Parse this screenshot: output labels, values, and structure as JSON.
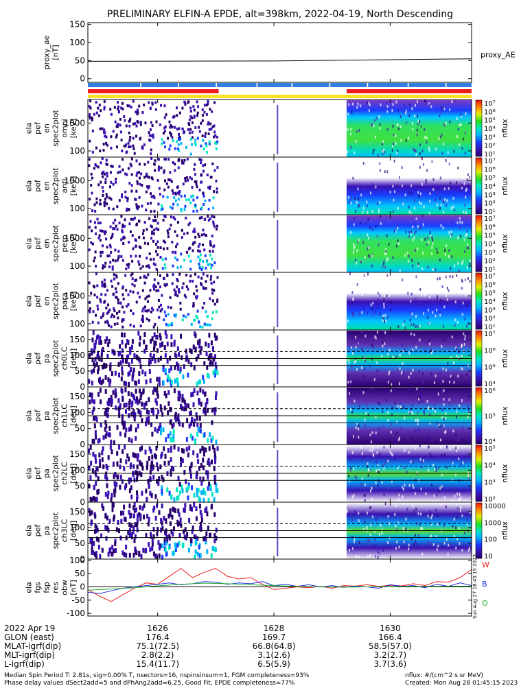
{
  "title": "PRELIMINARY ELFIN-A EPDE, alt=398km, 2022-04-19, North Descending",
  "time_range": [
    1624.8,
    1631.4
  ],
  "bottom_axis": {
    "ticks": [
      1626,
      1628,
      1630
    ],
    "ticks_label": [
      "1626",
      "1628",
      "1630"
    ],
    "rows": [
      {
        "name": "2022 Apr 19",
        "values": [
          "1626",
          "1628",
          "1630"
        ]
      },
      {
        "name": "GLON (east)",
        "values": [
          "176.4",
          "169.7",
          "166.4"
        ]
      },
      {
        "name": "MLAT-igrf(dip)",
        "values": [
          "75.1(72.5)",
          "66.8(64.8)",
          "58.5(57.0)"
        ]
      },
      {
        "name": "MLT-igrf(dip)",
        "values": [
          "2.8(2.2)",
          "3.1(2.6)",
          "3.2(2.7)"
        ]
      },
      {
        "name": "L-igrf(dip)",
        "values": [
          "15.4(11.7)",
          "6.5(5.9)",
          "3.7(3.6)"
        ]
      }
    ]
  },
  "footer": {
    "left_line1": "Median Spin Period T: 2.81s, sig=0.00% T, nsectors=16, nspinsinsum=1, FGM completeness=93%",
    "left_line2": "Phase delay values dSect2add=5 and dPhAng2add=6.25, Good Fit, EPDE completeness=77%",
    "right_line1": "nflux: #/(cm^2 s sr MeV)",
    "right_line2": "Created: Mon Aug 28 01:45:15 2023",
    "side_stamp": "Sun Aug 27 18:45:15 2023"
  },
  "colors": {
    "bar_blue": "#2f7fe0",
    "bar_red": "#ee1c1c",
    "bar_yellow": "#f7df2a",
    "line_W": "#ee1c1c",
    "line_B": "#1e2ee0",
    "line_O": "#20b030"
  },
  "status_bars": {
    "blue_segments": [
      [
        1624.8,
        1625.7
      ],
      [
        1625.72,
        1626.35
      ],
      [
        1626.37,
        1627.0
      ],
      [
        1627.02,
        1627.7
      ],
      [
        1627.72,
        1628.3
      ],
      [
        1628.32,
        1628.95
      ],
      [
        1628.97,
        1629.6
      ],
      [
        1629.62,
        1630.3
      ],
      [
        1630.32,
        1630.95
      ],
      [
        1630.97,
        1631.4
      ]
    ],
    "red_segments": [
      [
        1624.8,
        1627.05
      ],
      [
        1629.25,
        1631.4
      ]
    ],
    "yellow_segments": [
      [
        1624.8,
        1631.4
      ]
    ]
  },
  "chart_data": [
    {
      "type": "line",
      "id": "proxy_ae",
      "ylabel": "proxy_ae [nT]",
      "ylim": [
        -10,
        155
      ],
      "yticks": [
        "0",
        "50",
        "100",
        "150"
      ],
      "series": [
        {
          "name": "proxy_AE",
          "x": [
            1624.8,
            1628.0,
            1631.4
          ],
          "y": [
            48,
            49,
            55
          ]
        }
      ]
    },
    {
      "type": "heatmap",
      "id": "ela_pef_en_spec2plot_omni",
      "ylabel": [
        "ela",
        "pef",
        "en",
        "spec2plot",
        "omni",
        "[keV]"
      ],
      "ylim": [
        60,
        7000
      ],
      "yscale": "log",
      "yticks": [
        "100",
        "1000"
      ],
      "colorbar": {
        "label": "nflux",
        "range": [
          10,
          10000000
        ],
        "ticks": [
          "10⁷",
          "10⁶",
          "10⁵",
          "10⁴",
          "10³",
          "10²",
          "10¹"
        ]
      },
      "segments": [
        {
          "x": [
            1624.8,
            1627.05
          ],
          "level": "sparse"
        },
        {
          "x": [
            1629.25,
            1631.4
          ],
          "level": "dense"
        }
      ]
    },
    {
      "type": "heatmap",
      "id": "ela_pef_en_spec2plot_anti",
      "ylabel": [
        "ela",
        "pef",
        "en",
        "spec2plot",
        "anti",
        "[keV]"
      ],
      "ylim": [
        60,
        7000
      ],
      "yscale": "log",
      "yticks": [
        "100",
        "1000"
      ],
      "colorbar": {
        "label": "nflux",
        "range": [
          10,
          10000000
        ],
        "ticks": [
          "10⁷",
          "10⁶",
          "10⁵",
          "10⁴",
          "10³",
          "10²",
          "10¹"
        ]
      },
      "segments": [
        {
          "x": [
            1624.8,
            1627.05
          ],
          "level": "sparse"
        },
        {
          "x": [
            1629.25,
            1631.4
          ],
          "level": "medium"
        }
      ]
    },
    {
      "type": "heatmap",
      "id": "ela_pef_en_spec2plot_perp",
      "ylabel": [
        "ela",
        "pef",
        "en",
        "spec2plot",
        "perp",
        "[keV]"
      ],
      "ylim": [
        60,
        7000
      ],
      "yscale": "log",
      "yticks": [
        "100",
        "1000"
      ],
      "colorbar": {
        "label": "nflux",
        "range": [
          10,
          10000000
        ],
        "ticks": [
          "10⁷",
          "10⁶",
          "10⁵",
          "10⁴",
          "10³",
          "10²",
          "10¹"
        ]
      },
      "segments": [
        {
          "x": [
            1624.8,
            1627.05
          ],
          "level": "sparse"
        },
        {
          "x": [
            1629.25,
            1631.4
          ],
          "level": "dense"
        }
      ]
    },
    {
      "type": "heatmap",
      "id": "ela_pef_en_spec2plot_para",
      "ylabel": [
        "ela",
        "pef",
        "en",
        "spec2plot",
        "para",
        "[keV]"
      ],
      "ylim": [
        60,
        7000
      ],
      "yscale": "log",
      "yticks": [
        "100",
        "1000"
      ],
      "colorbar": {
        "label": "nflux",
        "range": [
          10,
          10000000
        ],
        "ticks": [
          "10⁷",
          "10⁶",
          "10⁵",
          "10⁴",
          "10³",
          "10²",
          "10¹"
        ]
      },
      "segments": [
        {
          "x": [
            1624.8,
            1627.05
          ],
          "level": "sparse"
        },
        {
          "x": [
            1629.25,
            1631.4
          ],
          "level": "medium"
        }
      ]
    },
    {
      "type": "heatmap",
      "id": "ela_pef_pa_spec2plot_ch0LC",
      "ylabel": [
        "ela",
        "pef",
        "pa",
        "spec2plot",
        "ch0LC",
        "[deg]"
      ],
      "ylim": [
        0,
        180
      ],
      "yticks": [
        "0",
        "50",
        "100",
        "150"
      ],
      "reference_lines": {
        "dashed": [
          112
        ],
        "solid": [
          90,
          68
        ]
      },
      "colorbar": {
        "label": "nflux",
        "range": [
          3000,
          10000000
        ],
        "ticks": [
          "10⁷",
          "10⁶",
          "10⁵",
          "10⁴"
        ]
      },
      "segments": [
        {
          "x": [
            1624.8,
            1627.05
          ],
          "level": "sparse"
        },
        {
          "x": [
            1629.25,
            1631.4
          ],
          "level": "dense"
        }
      ]
    },
    {
      "type": "heatmap",
      "id": "ela_pef_pa_spec2plot_ch1LC",
      "ylabel": [
        "ela",
        "pef",
        "pa",
        "spec2plot",
        "ch1LC",
        "[deg]"
      ],
      "ylim": [
        0,
        180
      ],
      "yticks": [
        "0",
        "50",
        "100",
        "150"
      ],
      "reference_lines": {
        "dashed": [
          112
        ],
        "solid": [
          90,
          68
        ]
      },
      "colorbar": {
        "label": "nflux",
        "range": [
          3000,
          3000000
        ],
        "ticks": [
          "10⁶",
          "10⁵",
          "10⁴"
        ]
      },
      "segments": [
        {
          "x": [
            1624.8,
            1627.05
          ],
          "level": "sparse"
        },
        {
          "x": [
            1629.25,
            1631.4
          ],
          "level": "dense"
        }
      ]
    },
    {
      "type": "heatmap",
      "id": "ela_pef_pa_spec2plot_ch2LC",
      "ylabel": [
        "ela",
        "pef",
        "pa",
        "spec2plot",
        "ch2LC",
        "[deg]"
      ],
      "ylim": [
        0,
        180
      ],
      "yticks": [
        "0",
        "50",
        "100",
        "150"
      ],
      "reference_lines": {
        "dashed": [
          112
        ],
        "solid": [
          90,
          68
        ]
      },
      "colorbar": {
        "label": "nflux",
        "range": [
          100,
          1000000
        ],
        "ticks": [
          "10⁵",
          "10⁴",
          "10³",
          "10²"
        ]
      },
      "segments": [
        {
          "x": [
            1624.8,
            1627.05
          ],
          "level": "sparse"
        },
        {
          "x": [
            1629.25,
            1631.4
          ],
          "level": "medium"
        }
      ]
    },
    {
      "type": "heatmap",
      "id": "ela_pef_pa_spec2plot_ch3LC",
      "ylabel": [
        "ela",
        "pef",
        "pa",
        "spec2plot",
        "ch3LC",
        "[deg]"
      ],
      "ylim": [
        0,
        180
      ],
      "yticks": [
        "0",
        "50",
        "100",
        "150"
      ],
      "reference_lines": {
        "dashed": [
          112
        ],
        "solid": [
          90,
          68
        ]
      },
      "colorbar": {
        "label": "nflux",
        "range": [
          10,
          10000
        ],
        "ticks": [
          "10000",
          "1000",
          "100",
          "10"
        ]
      },
      "segments": [
        {
          "x": [
            1624.8,
            1627.05
          ],
          "level": "sparse"
        },
        {
          "x": [
            1629.25,
            1631.4
          ],
          "level": "medium"
        }
      ]
    },
    {
      "type": "line",
      "id": "ela_fgs_fsp_res_obw",
      "ylabel": [
        "ela",
        "fgs",
        "fsp",
        "res",
        "obw",
        "[nT]"
      ],
      "ylim": [
        -110,
        105
      ],
      "yticks": [
        "-100",
        "-50",
        "0",
        "50",
        "100"
      ],
      "series": [
        {
          "name": "W",
          "color": "#ee1c1c",
          "x": [
            1624.8,
            1625.0,
            1625.2,
            1625.4,
            1625.6,
            1625.8,
            1626.0,
            1626.2,
            1626.4,
            1626.6,
            1626.8,
            1627.0,
            1627.2,
            1627.4,
            1627.6,
            1627.8,
            1628.0,
            1628.2,
            1628.4,
            1628.6,
            1628.8,
            1629.0,
            1629.2,
            1629.4,
            1629.6,
            1629.8,
            1630.0,
            1630.2,
            1630.4,
            1630.6,
            1630.8,
            1631.0,
            1631.2,
            1631.4
          ],
          "y": [
            -10,
            -35,
            -55,
            -30,
            -5,
            15,
            10,
            40,
            70,
            35,
            55,
            70,
            40,
            30,
            35,
            10,
            -10,
            -5,
            0,
            -3,
            2,
            -5,
            5,
            3,
            8,
            2,
            6,
            4,
            12,
            5,
            20,
            18,
            35,
            65
          ]
        },
        {
          "name": "B",
          "color": "#1e2ee0",
          "x": [
            1624.8,
            1625.0,
            1625.2,
            1625.4,
            1625.6,
            1625.8,
            1626.0,
            1626.2,
            1626.4,
            1626.6,
            1626.8,
            1627.0,
            1627.2,
            1627.4,
            1627.6,
            1627.8,
            1628.0,
            1628.2,
            1628.4,
            1628.6,
            1628.8,
            1629.0,
            1629.2,
            1629.4,
            1629.6,
            1629.8,
            1630.0,
            1630.2,
            1630.4,
            1630.6,
            1630.8,
            1631.0,
            1631.2,
            1631.4
          ],
          "y": [
            -20,
            -25,
            -15,
            -5,
            0,
            5,
            10,
            15,
            8,
            12,
            20,
            18,
            10,
            15,
            12,
            20,
            5,
            10,
            2,
            8,
            0,
            5,
            -2,
            3,
            0,
            -5,
            8,
            2,
            5,
            -3,
            10,
            2,
            15,
            5
          ]
        },
        {
          "name": "O",
          "color": "#20b030",
          "x": [
            1624.8,
            1625.2,
            1625.6,
            1626.0,
            1626.4,
            1626.8,
            1627.2,
            1627.6,
            1628.0,
            1628.4,
            1628.8,
            1629.2,
            1629.6,
            1630.0,
            1630.4,
            1630.8,
            1631.4
          ],
          "y": [
            -12,
            -8,
            -3,
            4,
            10,
            14,
            12,
            8,
            5,
            2,
            0,
            -1,
            0,
            1,
            2,
            2,
            3
          ]
        }
      ]
    }
  ]
}
